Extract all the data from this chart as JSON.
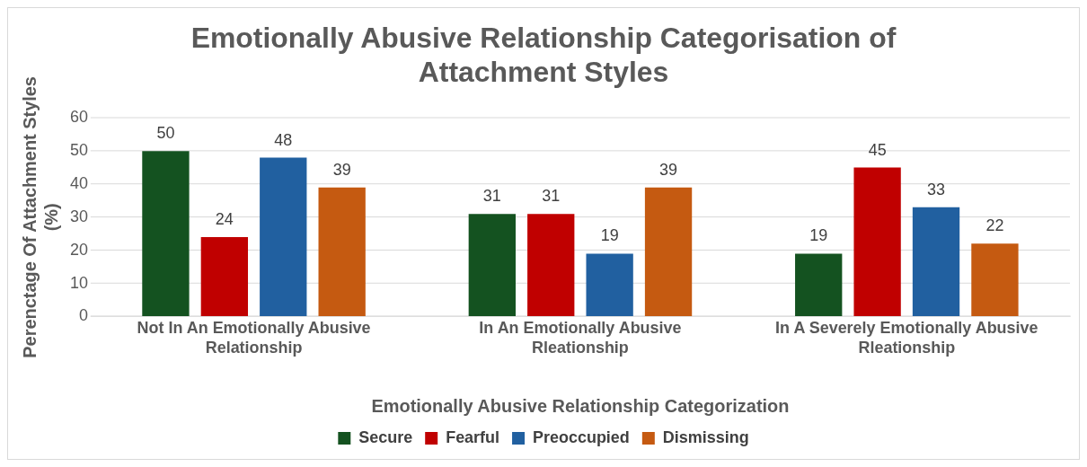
{
  "chart_data": {
    "type": "bar",
    "title": "Emotionally Abusive Relationship Categorisation of Attachment Styles",
    "xlabel": "Emotionally Abusive Relationship Categorization",
    "ylabel": "Perenctage Of Attachment Styles (%)",
    "categories": [
      "Not In An Emotionally Abusive Relationship",
      "In An Emotionally Abusive Rleationship",
      "In A Severely Emotionally Abusive Rleationship"
    ],
    "series": [
      {
        "name": "Secure",
        "color": "#145220",
        "values": [
          50,
          31,
          19
        ]
      },
      {
        "name": "Fearful",
        "color": "#c00000",
        "values": [
          24,
          31,
          45
        ]
      },
      {
        "name": "Preoccupied",
        "color": "#2160a0",
        "values": [
          48,
          19,
          33
        ]
      },
      {
        "name": "Dismissing",
        "color": "#c55a11",
        "values": [
          39,
          39,
          22
        ]
      }
    ],
    "ylim": [
      0,
      60
    ],
    "yticks": [
      0,
      10,
      20,
      30,
      40,
      50,
      60
    ],
    "grid": "y",
    "legend": "bottom",
    "data_labels": true
  }
}
